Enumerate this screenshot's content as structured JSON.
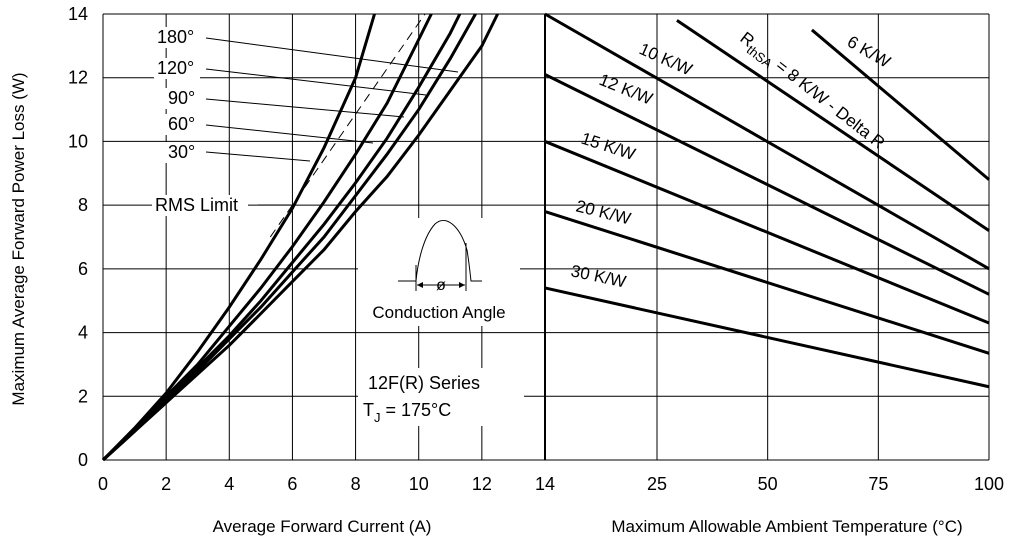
{
  "chart_data": [
    {
      "type": "line",
      "xlabel": "Average Forward Current (A)",
      "ylabel": "Maximum Average Forward Power Loss (W)",
      "xlim": [
        0,
        14
      ],
      "ylim": [
        0,
        14
      ],
      "x_ticks": [
        "0",
        "2",
        "4",
        "6",
        "8",
        "10",
        "12",
        "14"
      ],
      "y_ticks": [
        "0",
        "2",
        "4",
        "6",
        "8",
        "10",
        "12",
        "14"
      ],
      "grid": true,
      "series": [
        {
          "name": "180°",
          "x": [
            0,
            1,
            2,
            3,
            4,
            5,
            6,
            7,
            8,
            9,
            10,
            11,
            12,
            12.5
          ],
          "y": [
            0,
            0.9,
            1.8,
            2.7,
            3.6,
            4.6,
            5.6,
            6.6,
            7.8,
            8.9,
            10.2,
            11.6,
            13.0,
            14.0
          ]
        },
        {
          "name": "120°",
          "x": [
            0,
            1,
            2,
            3,
            4,
            5,
            6,
            7,
            8,
            9,
            10,
            11,
            11.8
          ],
          "y": [
            0,
            0.9,
            1.8,
            2.8,
            3.8,
            4.8,
            5.9,
            7.0,
            8.3,
            9.6,
            11.0,
            12.6,
            14.0
          ]
        },
        {
          "name": "90°",
          "x": [
            0,
            1,
            2,
            3,
            4,
            5,
            6,
            7,
            8,
            9,
            10,
            11,
            11.3
          ],
          "y": [
            0,
            0.9,
            1.9,
            2.9,
            3.9,
            5.0,
            6.2,
            7.4,
            8.7,
            10.1,
            11.7,
            13.4,
            14.0
          ]
        },
        {
          "name": "60°",
          "x": [
            0,
            1,
            2,
            3,
            4,
            5,
            6,
            7,
            8,
            9,
            10,
            10.4
          ],
          "y": [
            0,
            0.95,
            2.0,
            3.0,
            4.2,
            5.4,
            6.7,
            8.1,
            9.6,
            11.2,
            13.2,
            14.0
          ]
        },
        {
          "name": "30°",
          "x": [
            0,
            1,
            2,
            3,
            4,
            5,
            6,
            7,
            8,
            8.6
          ],
          "y": [
            0,
            1.0,
            2.1,
            3.4,
            4.8,
            6.3,
            7.9,
            9.8,
            12.0,
            14.0
          ]
        },
        {
          "name": "RMS Limit",
          "dashed": true,
          "x": [
            5.3,
            10.2
          ],
          "y": [
            7.0,
            14.0
          ]
        }
      ],
      "curve_labels": [
        "180°",
        "120°",
        "90°",
        "60°",
        "30°",
        "RMS Limit"
      ],
      "annotations": {
        "conduction": "Conduction Angle",
        "phi": "ø",
        "series_name": "12F(R) Series",
        "tj_prefix": "T",
        "tj_sub": "J",
        "tj_suffix": " = 175°C"
      }
    },
    {
      "type": "line",
      "xlabel": "Maximum Allowable Ambient Temperature (°C)",
      "xlim": [
        14,
        100
      ],
      "ylim": [
        0,
        14
      ],
      "x_ticks": [
        "14",
        "25",
        "50",
        "75",
        "100"
      ],
      "grid": true,
      "series": [
        {
          "name": "6 K/W",
          "x": [
            60,
            100
          ],
          "y": [
            13.5,
            8.8
          ]
        },
        {
          "name": "8 K/W",
          "x": [
            29.5,
            100
          ],
          "y": [
            13.8,
            7.2
          ]
        },
        {
          "name": "10 K/W",
          "x": [
            14,
            100
          ],
          "y": [
            14.0,
            6.0
          ]
        },
        {
          "name": "12 K/W",
          "x": [
            14,
            100
          ],
          "y": [
            12.1,
            5.2
          ]
        },
        {
          "name": "15 K/W",
          "x": [
            14,
            100
          ],
          "y": [
            10.0,
            4.3
          ]
        },
        {
          "name": "20 K/W",
          "x": [
            14,
            100
          ],
          "y": [
            7.8,
            3.35
          ]
        },
        {
          "name": "30 K/W",
          "x": [
            14,
            100
          ],
          "y": [
            5.4,
            2.3
          ]
        }
      ],
      "line_labels": [
        "6 K/W",
        "10 K/W",
        "12 K/W",
        "15 K/W",
        "20 K/W",
        "30 K/W"
      ],
      "rthsa_label": {
        "r": "R",
        "sub": "thSA",
        "rest": " = 8 K/W - Delta R"
      }
    }
  ]
}
